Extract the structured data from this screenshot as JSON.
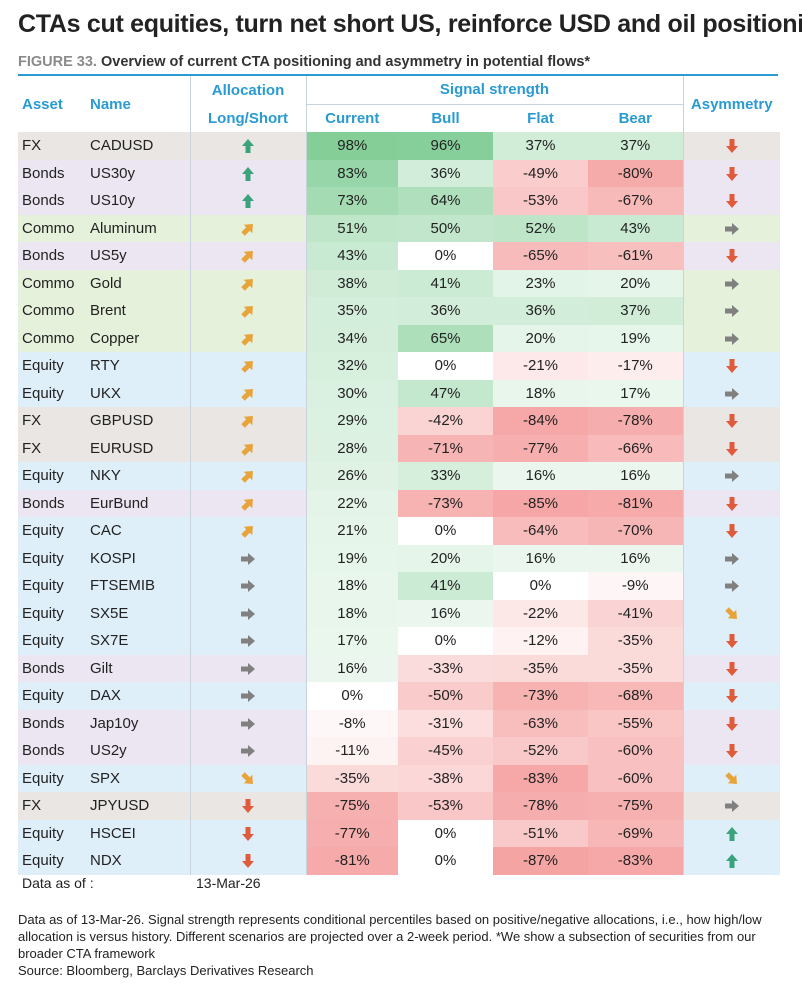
{
  "title": "CTAs cut equities, turn net short US, reinforce USD and oil positioning",
  "figure_label": "FIGURE 33.",
  "figure_text": "Overview of current CTA positioning and asymmetry in potential flows*",
  "headers": {
    "asset": "Asset",
    "name": "Name",
    "allocation_line1": "Allocation",
    "allocation_line2": "Long/Short",
    "signal_strength": "Signal strength",
    "current": "Current",
    "bull": "Bull",
    "flat": "Flat",
    "bear": "Bear",
    "asymmetry": "Asymmetry"
  },
  "group_colors": {
    "FX": "#e9e6e3",
    "Bonds": "#ece6f3",
    "Commo": "#e6f1dc",
    "Equity": "#dfeffa"
  },
  "chart_data": {
    "type": "table",
    "columns": [
      "Asset",
      "Name",
      "Allocation Long/Short",
      "Current",
      "Bull",
      "Flat",
      "Bear",
      "Asymmetry"
    ],
    "rows": [
      {
        "asset": "FX",
        "name": "CADUSD",
        "alloc": "up",
        "current": "98%",
        "bull": "96%",
        "flat": "37%",
        "bear": "37%",
        "asym": "down"
      },
      {
        "asset": "Bonds",
        "name": "US30y",
        "alloc": "up",
        "current": "83%",
        "bull": "36%",
        "flat": "-49%",
        "bear": "-80%",
        "asym": "down"
      },
      {
        "asset": "Bonds",
        "name": "US10y",
        "alloc": "up",
        "current": "73%",
        "bull": "64%",
        "flat": "-53%",
        "bear": "-67%",
        "asym": "down"
      },
      {
        "asset": "Commo",
        "name": "Aluminum",
        "alloc": "up-right",
        "current": "51%",
        "bull": "50%",
        "flat": "52%",
        "bear": "43%",
        "asym": "right"
      },
      {
        "asset": "Bonds",
        "name": "US5y",
        "alloc": "up-right",
        "current": "43%",
        "bull": "0%",
        "flat": "-65%",
        "bear": "-61%",
        "asym": "down"
      },
      {
        "asset": "Commo",
        "name": "Gold",
        "alloc": "up-right",
        "current": "38%",
        "bull": "41%",
        "flat": "23%",
        "bear": "20%",
        "asym": "right"
      },
      {
        "asset": "Commo",
        "name": "Brent",
        "alloc": "up-right",
        "current": "35%",
        "bull": "36%",
        "flat": "36%",
        "bear": "37%",
        "asym": "right"
      },
      {
        "asset": "Commo",
        "name": "Copper",
        "alloc": "up-right",
        "current": "34%",
        "bull": "65%",
        "flat": "20%",
        "bear": "19%",
        "asym": "right"
      },
      {
        "asset": "Equity",
        "name": "RTY",
        "alloc": "up-right",
        "current": "32%",
        "bull": "0%",
        "flat": "-21%",
        "bear": "-17%",
        "asym": "down"
      },
      {
        "asset": "Equity",
        "name": "UKX",
        "alloc": "up-right",
        "current": "30%",
        "bull": "47%",
        "flat": "18%",
        "bear": "17%",
        "asym": "right"
      },
      {
        "asset": "FX",
        "name": "GBPUSD",
        "alloc": "up-right",
        "current": "29%",
        "bull": "-42%",
        "flat": "-84%",
        "bear": "-78%",
        "asym": "down"
      },
      {
        "asset": "FX",
        "name": "EURUSD",
        "alloc": "up-right",
        "current": "28%",
        "bull": "-71%",
        "flat": "-77%",
        "bear": "-66%",
        "asym": "down"
      },
      {
        "asset": "Equity",
        "name": "NKY",
        "alloc": "up-right",
        "current": "26%",
        "bull": "33%",
        "flat": "16%",
        "bear": "16%",
        "asym": "right"
      },
      {
        "asset": "Bonds",
        "name": "EurBund",
        "alloc": "up-right",
        "current": "22%",
        "bull": "-73%",
        "flat": "-85%",
        "bear": "-81%",
        "asym": "down"
      },
      {
        "asset": "Equity",
        "name": "CAC",
        "alloc": "up-right",
        "current": "21%",
        "bull": "0%",
        "flat": "-64%",
        "bear": "-70%",
        "asym": "down"
      },
      {
        "asset": "Equity",
        "name": "KOSPI",
        "alloc": "right",
        "current": "19%",
        "bull": "20%",
        "flat": "16%",
        "bear": "16%",
        "asym": "right"
      },
      {
        "asset": "Equity",
        "name": "FTSEMIB",
        "alloc": "right",
        "current": "18%",
        "bull": "41%",
        "flat": "0%",
        "bear": "-9%",
        "asym": "right"
      },
      {
        "asset": "Equity",
        "name": "SX5E",
        "alloc": "right",
        "current": "18%",
        "bull": "16%",
        "flat": "-22%",
        "bear": "-41%",
        "asym": "down-right"
      },
      {
        "asset": "Equity",
        "name": "SX7E",
        "alloc": "right",
        "current": "17%",
        "bull": "0%",
        "flat": "-12%",
        "bear": "-35%",
        "asym": "down"
      },
      {
        "asset": "Bonds",
        "name": "Gilt",
        "alloc": "right",
        "current": "16%",
        "bull": "-33%",
        "flat": "-35%",
        "bear": "-35%",
        "asym": "down"
      },
      {
        "asset": "Equity",
        "name": "DAX",
        "alloc": "right",
        "current": "0%",
        "bull": "-50%",
        "flat": "-73%",
        "bear": "-68%",
        "asym": "down"
      },
      {
        "asset": "Bonds",
        "name": "Jap10y",
        "alloc": "right",
        "current": "-8%",
        "bull": "-31%",
        "flat": "-63%",
        "bear": "-55%",
        "asym": "down"
      },
      {
        "asset": "Bonds",
        "name": "US2y",
        "alloc": "right",
        "current": "-11%",
        "bull": "-45%",
        "flat": "-52%",
        "bear": "-60%",
        "asym": "down"
      },
      {
        "asset": "Equity",
        "name": "SPX",
        "alloc": "down-right",
        "current": "-35%",
        "bull": "-38%",
        "flat": "-83%",
        "bear": "-60%",
        "asym": "down-right"
      },
      {
        "asset": "FX",
        "name": "JPYUSD",
        "alloc": "down",
        "current": "-75%",
        "bull": "-53%",
        "flat": "-78%",
        "bear": "-75%",
        "asym": "right"
      },
      {
        "asset": "Equity",
        "name": "HSCEI",
        "alloc": "down",
        "current": "-77%",
        "bull": "0%",
        "flat": "-51%",
        "bear": "-69%",
        "asym": "up"
      },
      {
        "asset": "Equity",
        "name": "NDX",
        "alloc": "down",
        "current": "-81%",
        "bull": "0%",
        "flat": "-87%",
        "bear": "-83%",
        "asym": "up"
      }
    ]
  },
  "data_as_of_label": "Data as of :",
  "data_as_of_value": "13-Mar-26",
  "footnote_line": "Data as of 13-Mar-26. Signal strength represents conditional percentiles based on positive/negative allocations, i.e., how high/low allocation is versus history. Different scenarios are projected over a 2-week period. *We show a subsection of securities from our broader CTA framework",
  "source_line": "Source: Bloomberg, Barclays Derivatives Research"
}
